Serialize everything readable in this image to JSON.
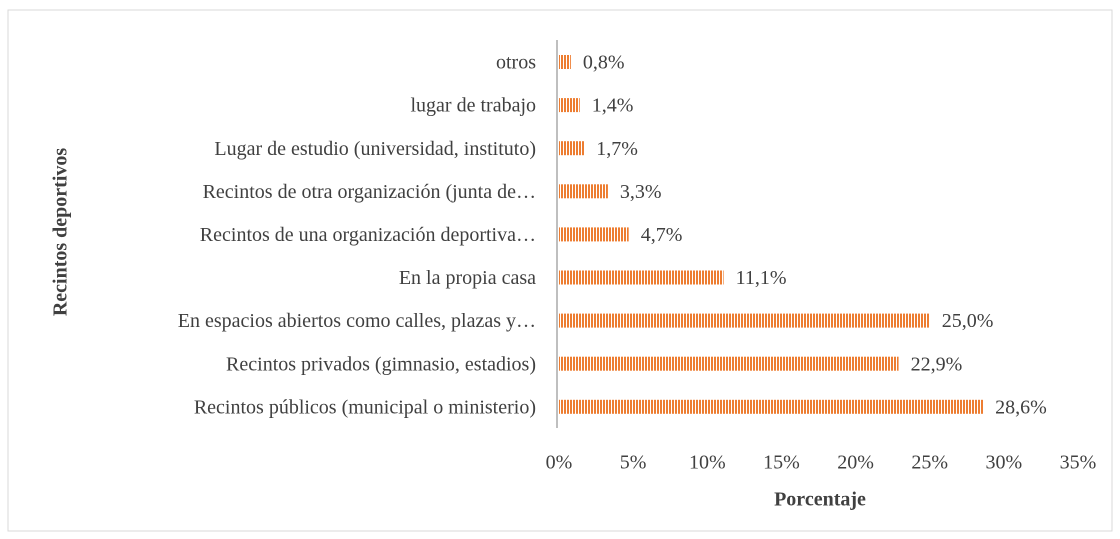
{
  "chart_data": {
    "type": "bar",
    "orientation": "horizontal",
    "xlabel": "Porcentaje",
    "ylabel": "Recintos deportivos",
    "categories": [
      "otros",
      "lugar de trabajo",
      "Lugar de estudio (universidad, instituto)",
      "Recintos de otra organización (junta de…",
      "Recintos de una organización deportiva…",
      "En la propia casa",
      "En espacios abiertos como calles, plazas y…",
      "Recintos privados (gimnasio, estadios)",
      "Recintos públicos (municipal o ministerio)"
    ],
    "values": [
      0.8,
      1.4,
      1.7,
      3.3,
      4.7,
      11.1,
      25.0,
      22.9,
      28.6
    ],
    "value_labels": [
      "0,8%",
      "1,4%",
      "1,7%",
      "3,3%",
      "4,7%",
      "11,1%",
      "25,0%",
      "22,9%",
      "28,6%"
    ],
    "color": "#ed7d31",
    "xlim": [
      0,
      35
    ],
    "xticks": [
      {
        "value": 0,
        "label": "0%"
      },
      {
        "value": 5,
        "label": "5%"
      },
      {
        "value": 10,
        "label": "10%"
      },
      {
        "value": 15,
        "label": "15%"
      },
      {
        "value": 20,
        "label": "20%"
      },
      {
        "value": 25,
        "label": "25%"
      },
      {
        "value": 30,
        "label": "30%"
      },
      {
        "value": 35,
        "label": "35%"
      }
    ],
    "grid": false
  }
}
